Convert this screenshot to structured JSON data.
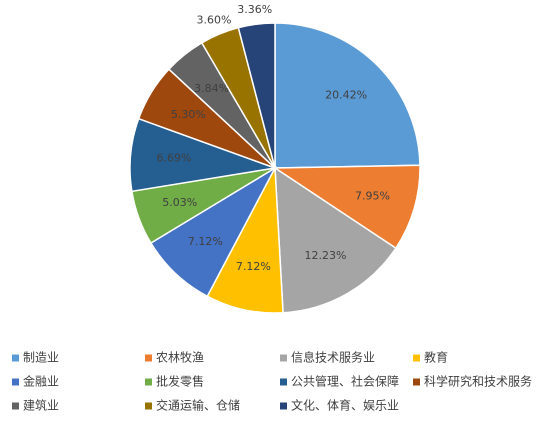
{
  "chart_data": {
    "type": "pie",
    "categories": [
      "制造业",
      "农林牧渔",
      "信息技术服务业",
      "教育",
      "金融业",
      "批发零售",
      "公共管理、社会保障",
      "科学研究和技术服务",
      "建筑业",
      "交通运输、仓储",
      "文化、体育、娱乐业"
    ],
    "values": [
      20.42,
      7.95,
      12.23,
      7.12,
      7.12,
      5.03,
      6.69,
      5.3,
      3.84,
      3.6,
      3.36
    ],
    "value_labels": [
      "20.42%",
      "7.95%",
      "12.23%",
      "7.12%",
      "7.12%",
      "5.03%",
      "6.69%",
      "5.30%",
      "3.84%",
      "3.60%",
      "3.36%"
    ],
    "colors": [
      "#5b9bd5",
      "#ed7d31",
      "#a5a5a5",
      "#ffc000",
      "#4472c4",
      "#70ad47",
      "#255e91",
      "#9e480e",
      "#636363",
      "#997300",
      "#264478"
    ],
    "legend": "bottom"
  }
}
